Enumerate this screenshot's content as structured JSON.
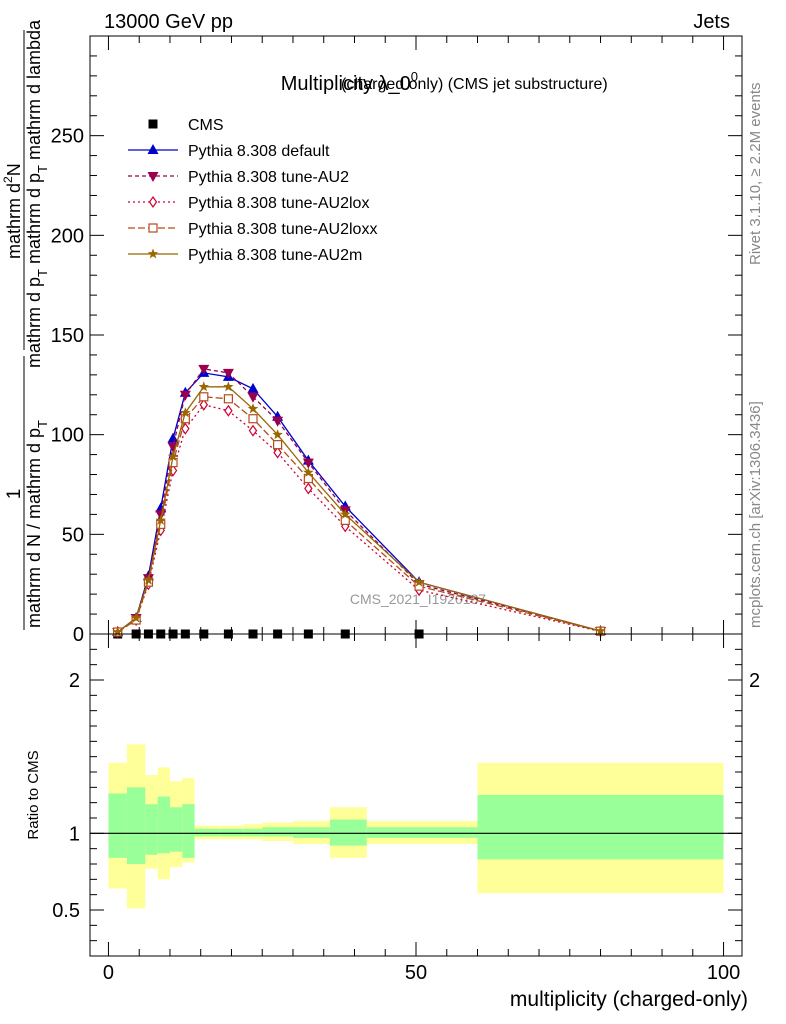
{
  "header": {
    "left": "13000 GeV pp",
    "right": "Jets",
    "side_rivet": "Rivet 3.1.10, ≥ 2.2M events",
    "side_mcplots": "mcplots.cern.ch [arXiv:1306.3436]",
    "watermark": "CMS_2021_I1920187"
  },
  "chart_data": [
    {
      "type": "line",
      "title": "Multiplicity λ_0",
      "title_sup": "0",
      "subtitle": "(charged only) (CMS jet substructure)",
      "ylabel_lines": [
        "1",
        "mathrm d N / mathrm d p_T mathrm d p_T mathrm d lambda",
        "mathrm d²N",
        "mathrm d p_T mathrm d lambda"
      ],
      "ylabel_parts": {
        "numerator": "1",
        "denominator": "mathrm d N / mathrm d p",
        "denominator_sub": "T",
        "second_num": "mathrm d",
        "second_num_sup": "2",
        "second_num_end": "N",
        "second_den": "mathrm d p",
        "second_den_sub": "T",
        "second_den_end": " mathrm d p",
        "second_den_sub2": "T",
        "second_den_end2": " mathrm d lambda"
      },
      "xlim": [
        -3,
        103
      ],
      "ylim": [
        0,
        300
      ],
      "yticks": [
        0,
        50,
        100,
        150,
        200,
        250
      ],
      "legend_position": "top-left",
      "series": [
        {
          "name": "CMS",
          "marker": "square",
          "color": "#000000",
          "dash": "none",
          "x": [
            1.5,
            4.5,
            6.5,
            8.5,
            10.5,
            12.5,
            15.5,
            19.5,
            23.5,
            27.5,
            32.5,
            38.5,
            50.5
          ],
          "y": [
            0,
            0,
            0,
            0,
            0,
            0,
            0,
            0,
            0,
            0,
            0,
            0,
            0
          ]
        },
        {
          "name": "Pythia 8.308 default",
          "marker": "triangle-up",
          "color": "#0000cc",
          "dash": "solid",
          "x": [
            1.5,
            4.5,
            6.5,
            8.5,
            10.5,
            12.5,
            15.5,
            19.5,
            23.5,
            27.5,
            32.5,
            38.5,
            50.5,
            80
          ],
          "y": [
            1,
            8,
            29,
            63,
            98,
            121,
            131,
            129,
            123,
            109,
            87,
            64,
            26,
            1.5
          ]
        },
        {
          "name": "Pythia 8.308 tune-AU2",
          "marker": "triangle-down",
          "color": "#99004d",
          "dash": "4,3",
          "x": [
            1.5,
            4.5,
            6.5,
            8.5,
            10.5,
            12.5,
            15.5,
            19.5,
            23.5,
            27.5,
            32.5,
            38.5,
            50.5,
            80
          ],
          "y": [
            1,
            8,
            28,
            60,
            94,
            120,
            133,
            131,
            119,
            107,
            86,
            62,
            25,
            1.5
          ]
        },
        {
          "name": "Pythia 8.308 tune-AU2lox",
          "marker": "diamond-open",
          "color": "#cc0033",
          "dash": "2,3",
          "x": [
            1.5,
            4.5,
            6.5,
            8.5,
            10.5,
            12.5,
            15.5,
            19.5,
            23.5,
            27.5,
            32.5,
            38.5,
            50.5,
            80
          ],
          "y": [
            1,
            7,
            25,
            52,
            82,
            103,
            115,
            112,
            102,
            91,
            73,
            54,
            22,
            1.3
          ]
        },
        {
          "name": "Pythia 8.308 tune-AU2loxx",
          "marker": "square-open",
          "color": "#b34d1a",
          "dash": "7,3",
          "x": [
            1.5,
            4.5,
            6.5,
            8.5,
            10.5,
            12.5,
            15.5,
            19.5,
            23.5,
            27.5,
            32.5,
            38.5,
            50.5,
            80
          ],
          "y": [
            1,
            7,
            26,
            55,
            86,
            108,
            119,
            118,
            108,
            95,
            78,
            57,
            24,
            1.4
          ]
        },
        {
          "name": "Pythia 8.308 tune-AU2m",
          "marker": "star",
          "color": "#996600",
          "dash": "solid",
          "x": [
            1.5,
            4.5,
            6.5,
            8.5,
            10.5,
            12.5,
            15.5,
            19.5,
            23.5,
            27.5,
            32.5,
            38.5,
            50.5,
            80
          ],
          "y": [
            1,
            8,
            27,
            57,
            89,
            111,
            124,
            124,
            113,
            100,
            81,
            60,
            26,
            1.5
          ]
        }
      ]
    },
    {
      "type": "area",
      "ylabel": "Ratio to CMS",
      "xlabel": "multiplicity (charged-only)",
      "xlim": [
        -3,
        103
      ],
      "ylim": [
        0.2,
        2.3
      ],
      "yticks": [
        0.5,
        1,
        2
      ],
      "xticks": [
        0,
        50,
        100
      ],
      "reference_line": 1,
      "band_colors": {
        "outer": "#ffff99",
        "inner": "#99ff99"
      },
      "bins": [
        {
          "x": [
            0,
            3
          ],
          "outer": [
            0.64,
            1.46
          ],
          "inner": [
            0.84,
            1.26
          ]
        },
        {
          "x": [
            3,
            6
          ],
          "outer": [
            0.51,
            1.58
          ],
          "inner": [
            0.8,
            1.3
          ]
        },
        {
          "x": [
            6,
            8
          ],
          "outer": [
            0.77,
            1.38
          ],
          "inner": [
            0.86,
            1.19
          ]
        },
        {
          "x": [
            8,
            10
          ],
          "outer": [
            0.7,
            1.43
          ],
          "inner": [
            0.87,
            1.24
          ]
        },
        {
          "x": [
            10,
            12
          ],
          "outer": [
            0.78,
            1.34
          ],
          "inner": [
            0.88,
            1.17
          ]
        },
        {
          "x": [
            12,
            14
          ],
          "outer": [
            0.81,
            1.36
          ],
          "inner": [
            0.84,
            1.19
          ]
        },
        {
          "x": [
            14,
            18
          ],
          "outer": [
            0.96,
            1.05
          ],
          "inner": [
            0.98,
            1.03
          ]
        },
        {
          "x": [
            18,
            22
          ],
          "outer": [
            0.96,
            1.05
          ],
          "inner": [
            0.98,
            1.03
          ]
        },
        {
          "x": [
            22,
            25
          ],
          "outer": [
            0.96,
            1.06
          ],
          "inner": [
            0.98,
            1.03
          ]
        },
        {
          "x": [
            25,
            30
          ],
          "outer": [
            0.95,
            1.07
          ],
          "inner": [
            0.98,
            1.04
          ]
        },
        {
          "x": [
            30,
            36
          ],
          "outer": [
            0.93,
            1.08
          ],
          "inner": [
            0.97,
            1.04
          ]
        },
        {
          "x": [
            36,
            42
          ],
          "outer": [
            0.84,
            1.17
          ],
          "inner": [
            0.92,
            1.09
          ]
        },
        {
          "x": [
            42,
            60
          ],
          "outer": [
            0.93,
            1.08
          ],
          "inner": [
            0.97,
            1.04
          ]
        },
        {
          "x": [
            60,
            100
          ],
          "outer": [
            0.61,
            1.46
          ],
          "inner": [
            0.83,
            1.25
          ]
        }
      ]
    }
  ]
}
